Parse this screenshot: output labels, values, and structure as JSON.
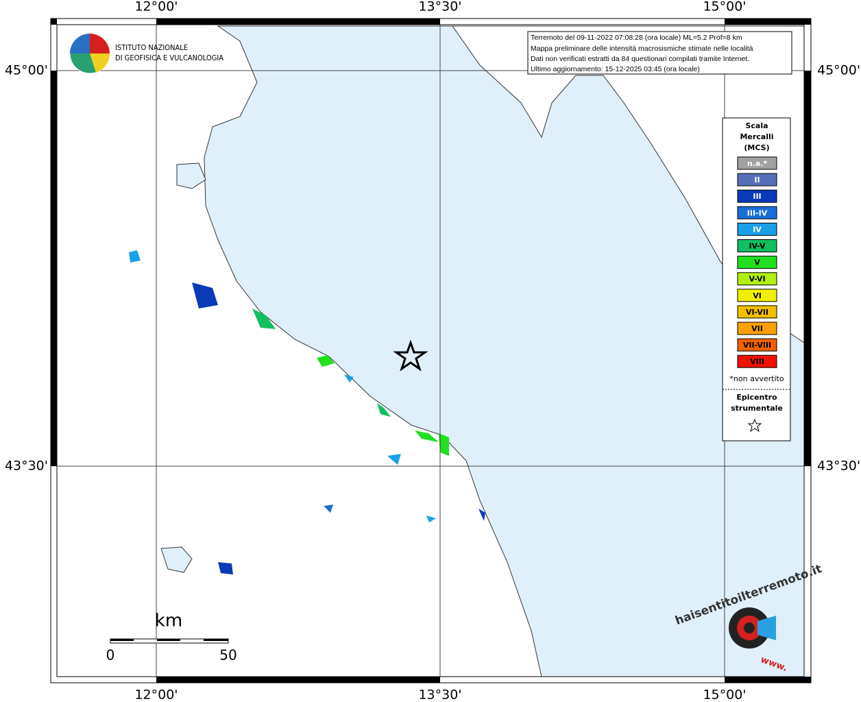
{
  "map": {
    "info_lines": [
      "Terremoto del 09-11-2022 07:08:28 (ora locale) ML=5.2 Prof=8 km",
      "Mappa preliminare delle intensità macrosismiche stimate nelle località",
      "Dati non verificati estratti da 84 questionari compilati tramite Internet.",
      "Ultimo aggiornamento: 15-12-2025 03:45 (ora locale)"
    ],
    "lon_labels": [
      "12°00'",
      "13°30'",
      "15°00'"
    ],
    "lat_labels": [
      "45°00'",
      "43°30'"
    ],
    "logo_lines": [
      "ISTITUTO NAZIONALE",
      "DI GEOFISICA E VULCANOLOGIA"
    ],
    "legend": {
      "title_lines": [
        "Scala",
        "Mercalli",
        "(MCS)"
      ],
      "items": [
        {
          "label": "n.a.*",
          "color": "#a0a0a0"
        },
        {
          "label": "II",
          "color": "#5670b8"
        },
        {
          "label": "III",
          "color": "#0a3ab8"
        },
        {
          "label": "III-IV",
          "color": "#1a6ed8"
        },
        {
          "label": "IV",
          "color": "#1aa0e8"
        },
        {
          "label": "IV-V",
          "color": "#10c060"
        },
        {
          "label": "V",
          "color": "#20e020"
        },
        {
          "label": "V-VI",
          "color": "#b0f010"
        },
        {
          "label": "VI",
          "color": "#f0f000"
        },
        {
          "label": "VI-VII",
          "color": "#f0c000"
        },
        {
          "label": "VII",
          "color": "#f8a000"
        },
        {
          "label": "VII-VIII",
          "color": "#f06000"
        },
        {
          "label": "VIII",
          "color": "#f01000"
        }
      ],
      "note": "*non avvertito",
      "epicenter_lines": [
        "Epicentro",
        "strumentale"
      ]
    },
    "scale": {
      "unit": "km",
      "start": "0",
      "end": "50"
    },
    "badge": {
      "site": "haisentitoilterremoto.it",
      "www": "www."
    }
  }
}
